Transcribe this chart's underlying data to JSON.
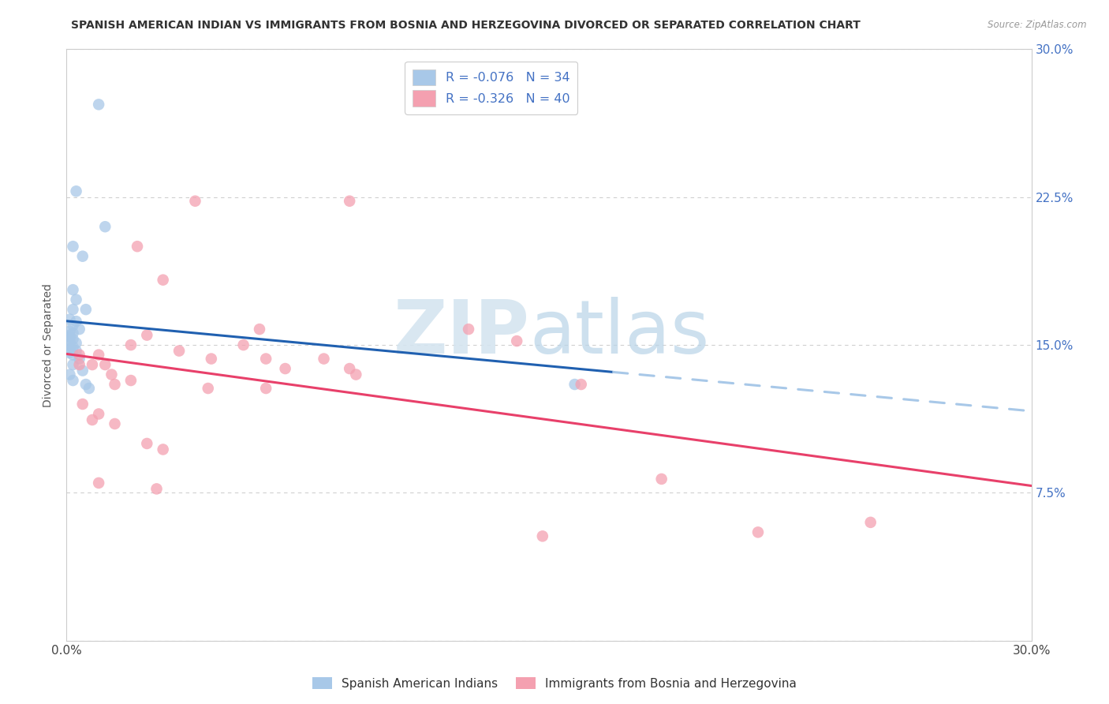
{
  "title": "SPANISH AMERICAN INDIAN VS IMMIGRANTS FROM BOSNIA AND HERZEGOVINA DIVORCED OR SEPARATED CORRELATION CHART",
  "source": "Source: ZipAtlas.com",
  "ylabel": "Divorced or Separated",
  "xlim": [
    0.0,
    0.3
  ],
  "ylim": [
    0.0,
    0.3
  ],
  "ytick_values": [
    0.0,
    0.075,
    0.15,
    0.225,
    0.3
  ],
  "xtick_values": [
    0.0,
    0.05,
    0.1,
    0.15,
    0.2,
    0.25,
    0.3
  ],
  "legend1_label": "R = -0.076   N = 34",
  "legend2_label": "R = -0.326   N = 40",
  "legend_bottom_label1": "Spanish American Indians",
  "legend_bottom_label2": "Immigrants from Bosnia and Herzegovina",
  "blue_color": "#a8c8e8",
  "pink_color": "#f4a0b0",
  "blue_line_color": "#2060b0",
  "blue_dash_color": "#a8c8e8",
  "pink_line_color": "#e8406a",
  "blue_line_solid_end": 0.17,
  "blue_scatter": [
    [
      0.01,
      0.272
    ],
    [
      0.003,
      0.228
    ],
    [
      0.012,
      0.21
    ],
    [
      0.002,
      0.2
    ],
    [
      0.005,
      0.195
    ],
    [
      0.002,
      0.178
    ],
    [
      0.003,
      0.173
    ],
    [
      0.002,
      0.168
    ],
    [
      0.006,
      0.168
    ],
    [
      0.001,
      0.163
    ],
    [
      0.003,
      0.162
    ],
    [
      0.002,
      0.16
    ],
    [
      0.004,
      0.158
    ],
    [
      0.001,
      0.157
    ],
    [
      0.002,
      0.156
    ],
    [
      0.001,
      0.155
    ],
    [
      0.001,
      0.154
    ],
    [
      0.002,
      0.153
    ],
    [
      0.001,
      0.152
    ],
    [
      0.003,
      0.151
    ],
    [
      0.001,
      0.15
    ],
    [
      0.002,
      0.149
    ],
    [
      0.001,
      0.148
    ],
    [
      0.003,
      0.147
    ],
    [
      0.001,
      0.146
    ],
    [
      0.002,
      0.145
    ],
    [
      0.004,
      0.143
    ],
    [
      0.002,
      0.14
    ],
    [
      0.005,
      0.137
    ],
    [
      0.001,
      0.135
    ],
    [
      0.002,
      0.132
    ],
    [
      0.006,
      0.13
    ],
    [
      0.007,
      0.128
    ],
    [
      0.158,
      0.13
    ]
  ],
  "pink_scatter": [
    [
      0.04,
      0.223
    ],
    [
      0.088,
      0.223
    ],
    [
      0.022,
      0.2
    ],
    [
      0.03,
      0.183
    ],
    [
      0.06,
      0.158
    ],
    [
      0.125,
      0.158
    ],
    [
      0.025,
      0.155
    ],
    [
      0.14,
      0.152
    ],
    [
      0.055,
      0.15
    ],
    [
      0.02,
      0.15
    ],
    [
      0.035,
      0.147
    ],
    [
      0.004,
      0.145
    ],
    [
      0.01,
      0.145
    ],
    [
      0.045,
      0.143
    ],
    [
      0.062,
      0.143
    ],
    [
      0.08,
      0.143
    ],
    [
      0.004,
      0.14
    ],
    [
      0.008,
      0.14
    ],
    [
      0.012,
      0.14
    ],
    [
      0.068,
      0.138
    ],
    [
      0.088,
      0.138
    ],
    [
      0.014,
      0.135
    ],
    [
      0.09,
      0.135
    ],
    [
      0.02,
      0.132
    ],
    [
      0.015,
      0.13
    ],
    [
      0.044,
      0.128
    ],
    [
      0.062,
      0.128
    ],
    [
      0.16,
      0.13
    ],
    [
      0.005,
      0.12
    ],
    [
      0.01,
      0.115
    ],
    [
      0.008,
      0.112
    ],
    [
      0.015,
      0.11
    ],
    [
      0.025,
      0.1
    ],
    [
      0.03,
      0.097
    ],
    [
      0.01,
      0.08
    ],
    [
      0.028,
      0.077
    ],
    [
      0.185,
      0.082
    ],
    [
      0.215,
      0.055
    ],
    [
      0.148,
      0.053
    ],
    [
      0.25,
      0.06
    ]
  ],
  "watermark_zip": "ZIP",
  "watermark_atlas": "atlas",
  "background_color": "#ffffff",
  "grid_color": "#d0d0d0"
}
